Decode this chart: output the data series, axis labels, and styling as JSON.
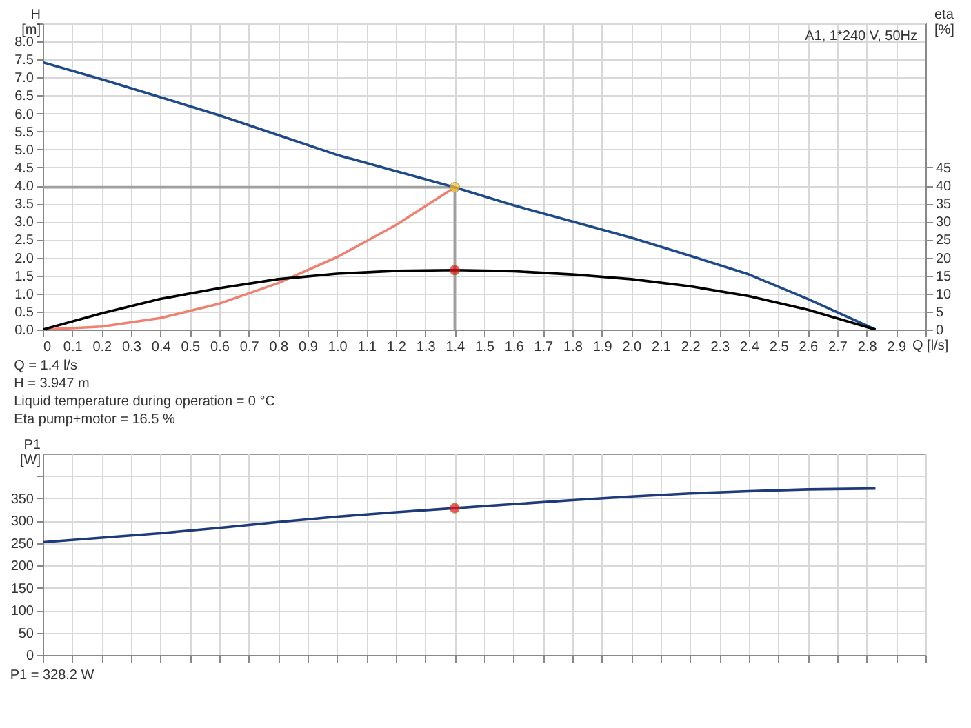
{
  "chart_data": [
    {
      "type": "line",
      "ylabel": "H [m]",
      "y2label": "eta [%]",
      "xlabel": "Q [l/s]",
      "annotations": [
        "A1, 1*240 V, 50Hz",
        "Q = 1.4 l/s",
        "H = 3.947 m",
        "Liquid temperature during operation = 0 °C",
        "Eta pump+motor = 16.5 %"
      ],
      "xlim": [
        0,
        3.0
      ],
      "xticks": [
        0,
        0.1,
        0.2,
        0.3,
        0.4,
        0.5,
        0.6,
        0.7,
        0.8,
        0.9,
        {
          "value": 1,
          "label": "1.0"
        },
        1.1,
        1.2,
        1.3,
        1.4,
        1.5,
        1.6,
        1.7,
        1.8,
        1.9,
        {
          "value": 2,
          "label": "2.0"
        },
        2.1,
        2.2,
        2.3,
        2.4,
        2.5,
        2.6,
        2.7,
        2.8,
        2.9,
        {
          "value": 3,
          "label": null
        }
      ],
      "ylim": [
        0,
        8.5
      ],
      "yticks": [
        {
          "value": 0,
          "label": "0.0"
        },
        0.5,
        {
          "value": 1,
          "label": "1.0"
        },
        1.5,
        {
          "value": 2,
          "label": "2.0"
        },
        2.5,
        {
          "value": 3,
          "label": "3.0"
        },
        3.5,
        {
          "value": 4,
          "label": "4.0"
        },
        4.5,
        {
          "value": 5,
          "label": "5.0"
        },
        5.5,
        {
          "value": 6,
          "label": "6.0"
        },
        6.5,
        {
          "value": 7,
          "label": "7.0"
        },
        7.5,
        {
          "value": 8,
          "label": "8.0"
        },
        {
          "value": 8.5,
          "label": null
        }
      ],
      "y2lim": [
        0,
        85
      ],
      "y2ticks": [
        0,
        5,
        10,
        15,
        20,
        25,
        30,
        35,
        40,
        45
      ],
      "grid": true,
      "series": [
        {
          "color": "#a0a0a0",
          "x": [
            0,
            1.4,
            1.4
          ],
          "values": [
            3.95,
            3.95,
            0
          ]
        },
        {
          "color": "#f08070",
          "x": [
            0,
            0.2,
            0.4,
            0.6,
            0.8,
            1.0,
            1.2,
            1.4
          ],
          "values": [
            0,
            0.08,
            0.32,
            0.72,
            1.29,
            2.01,
            2.9,
            3.95
          ]
        },
        {
          "color": "#1e4a8a",
          "x": [
            0,
            0.2,
            0.4,
            0.6,
            0.8,
            1.0,
            1.2,
            1.4,
            1.6,
            1.8,
            2.0,
            2.2,
            2.4,
            2.6,
            2.83
          ],
          "values": [
            7.42,
            6.95,
            6.45,
            5.95,
            5.4,
            4.85,
            4.4,
            3.95,
            3.45,
            3.0,
            2.55,
            2.05,
            1.53,
            0.85,
            0
          ]
        },
        {
          "color": "#000000",
          "axis": "y2",
          "x": [
            0,
            0.2,
            0.4,
            0.6,
            0.8,
            1.0,
            1.2,
            1.4,
            1.6,
            1.8,
            2.0,
            2.2,
            2.4,
            2.6,
            2.83
          ],
          "values": [
            0,
            4.5,
            8.5,
            11.5,
            14,
            15.5,
            16.3,
            16.5,
            16.2,
            15.3,
            14,
            12,
            9.3,
            5.5,
            0
          ]
        },
        {
          "type": "scatter",
          "color": "#f7c531",
          "x": [
            1.4
          ],
          "values": [
            3.95
          ]
        },
        {
          "type": "scatter",
          "color": "#e8121a",
          "axis": "y2",
          "x": [
            1.4
          ],
          "values": [
            16.5
          ]
        }
      ]
    },
    {
      "type": "line",
      "ylabel": "P1 [W]",
      "annotations": [
        "P1 = 328.2 W"
      ],
      "xlim": [
        0,
        3.0
      ],
      "xticks": [
        0,
        0.1,
        0.2,
        0.3,
        0.4,
        0.5,
        0.6,
        0.7,
        0.8,
        0.9,
        1,
        1.1,
        1.2,
        1.3,
        1.4,
        1.5,
        1.6,
        1.7,
        1.8,
        1.9,
        2,
        2.1,
        2.2,
        2.3,
        2.4,
        2.5,
        2.6,
        2.7,
        2.8,
        2.9,
        3
      ],
      "ylim": [
        0,
        450
      ],
      "yticks": [
        0,
        50,
        100,
        150,
        200,
        250,
        300,
        350,
        {
          "value": 400,
          "label": null
        }
      ],
      "tick_labels": "y",
      "grid": true,
      "series": [
        {
          "color": "#1e3a7a",
          "x": [
            0,
            0.2,
            0.4,
            0.6,
            0.8,
            1.0,
            1.2,
            1.4,
            1.6,
            1.8,
            2.0,
            2.2,
            2.4,
            2.6,
            2.83
          ],
          "values": [
            252,
            262,
            272,
            284,
            297,
            309,
            319,
            328,
            337,
            346,
            354,
            361,
            366,
            370,
            372
          ]
        },
        {
          "type": "scatter",
          "color": "#e8121a",
          "x": [
            1.4
          ],
          "values": [
            328
          ]
        }
      ]
    }
  ]
}
